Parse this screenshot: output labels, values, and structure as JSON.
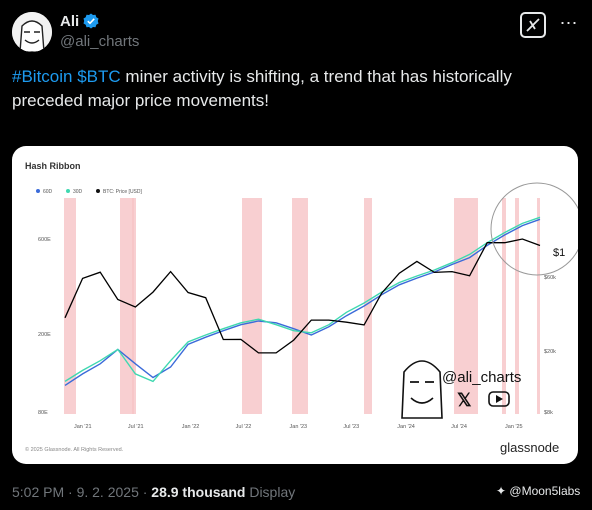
{
  "author": {
    "name": "Ali",
    "handle": "@ali_charts"
  },
  "tweet": {
    "hashtag": "#Bitcoin",
    "cashtag": "$BTC",
    "text_line1": " miner activity is shifting, a trend that has historically",
    "text_line2": "preceded major price movements!"
  },
  "footer": {
    "time": "5:02 PM · 9. 2. 2025 · ",
    "views": "28.9 thousand",
    "views_label": " Display",
    "watermark": "@Moon5labs"
  },
  "colors": {
    "background": "#000000",
    "link": "#1d9bf0",
    "ma60": "#3b6bd9",
    "ma30": "#3fd8b0",
    "price": "#000000",
    "capitulation": "#f6c3c6"
  },
  "chart_data": {
    "type": "line",
    "title": "Hash Ribbon",
    "legend": [
      "60D",
      "30D",
      "BTC: Price [USD]"
    ],
    "left_axis_ticks": [
      "600E",
      "200E",
      "80E"
    ],
    "right_axis_ticks": [
      "$60k",
      "$20k",
      "$8k"
    ],
    "x_ticks": [
      "Jan '21",
      "Jul '21",
      "Jan '22",
      "Jul '22",
      "Jan '23",
      "Jul '23",
      "Jan '24",
      "Jul '24",
      "Jan '25"
    ],
    "right_axis_partial_label": "$1",
    "overlay_handle": "@ali_charts",
    "copyright": "© 2025 Glassnode. All Rights Reserved.",
    "brand": "glassnode",
    "series": [
      {
        "name": "60D",
        "values": [
          95,
          110,
          125,
          150,
          125,
          105,
          120,
          160,
          175,
          190,
          205,
          215,
          210,
          195,
          180,
          200,
          230,
          260,
          300,
          340,
          370,
          400,
          440,
          480,
          560,
          640,
          720,
          780
        ]
      },
      {
        "name": "30D",
        "values": [
          100,
          115,
          130,
          150,
          110,
          100,
          130,
          165,
          180,
          195,
          210,
          220,
          205,
          190,
          185,
          205,
          240,
          270,
          310,
          350,
          380,
          410,
          450,
          500,
          580,
          660,
          740,
          800
        ]
      },
      {
        "name": "BTC: Price [USD]",
        "values": [
          30,
          55,
          60,
          40,
          35,
          45,
          60,
          45,
          40,
          22,
          21,
          18,
          17,
          22,
          28,
          30,
          27,
          28,
          42,
          62,
          68,
          63,
          58,
          60,
          90,
          100,
          95,
          96
        ]
      }
    ],
    "capitulation_bands": [
      "Jan '21",
      "Mar '21",
      "May '21",
      "Jun '21",
      "Jun '22",
      "Nov '22",
      "May '23",
      "Feb '24",
      "Apr '24",
      "Jul '24",
      "Oct '24",
      "Feb '25"
    ]
  }
}
